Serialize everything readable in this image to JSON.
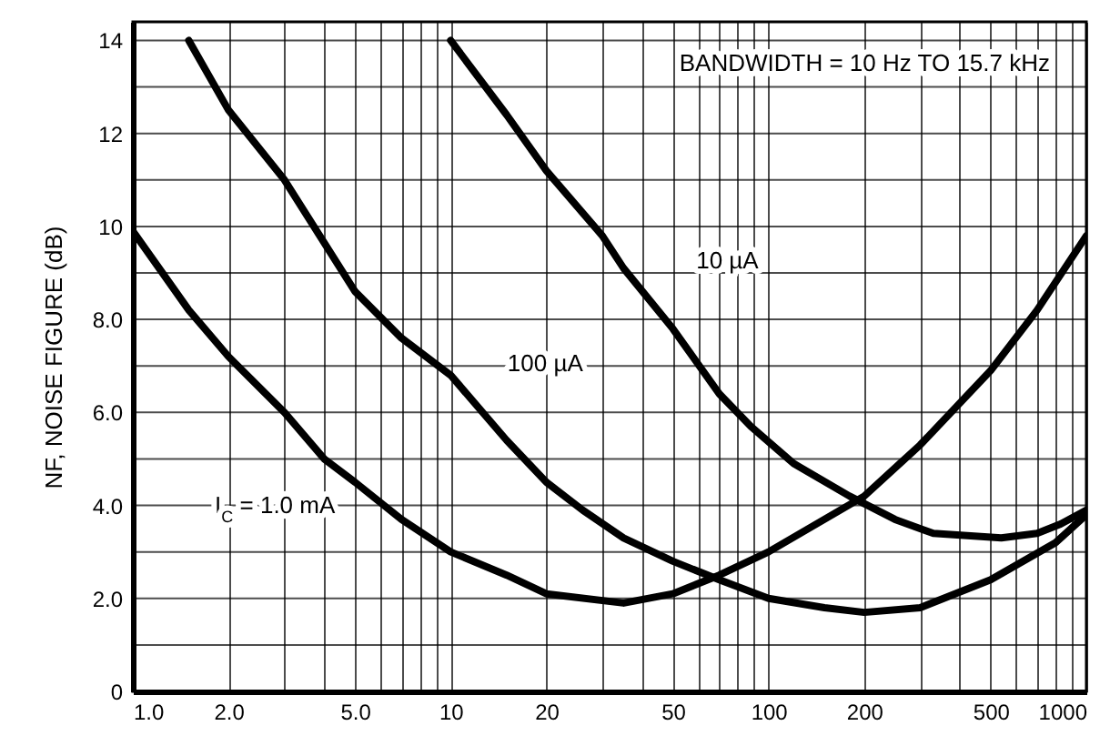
{
  "chart_data": {
    "type": "line",
    "ylabel": "NF, NOISE FIGURE (dB)",
    "log": "x",
    "xlim": [
      1,
      1000
    ],
    "ylim": [
      0,
      14.4
    ],
    "grid": true,
    "marker": "none",
    "line_style": "solid",
    "xticks": [
      {
        "value": 1,
        "label": "1.0"
      },
      {
        "value": 2,
        "label": "2.0"
      },
      {
        "value": 3,
        "label": null
      },
      {
        "value": 4,
        "label": null
      },
      {
        "value": 5,
        "label": "5.0"
      },
      {
        "value": 6,
        "label": null
      },
      {
        "value": 7,
        "label": null
      },
      {
        "value": 8,
        "label": null
      },
      {
        "value": 9,
        "label": null
      },
      10,
      20,
      {
        "value": 30,
        "label": null
      },
      {
        "value": 40,
        "label": null
      },
      50,
      {
        "value": 60,
        "label": null
      },
      {
        "value": 70,
        "label": null
      },
      {
        "value": 80,
        "label": null
      },
      {
        "value": 90,
        "label": null
      },
      100,
      200,
      {
        "value": 300,
        "label": null
      },
      {
        "value": 400,
        "label": null
      },
      500,
      {
        "value": 600,
        "label": null
      },
      {
        "value": 700,
        "label": null
      },
      {
        "value": 800,
        "label": null
      },
      {
        "value": 900,
        "label": null
      },
      1000
    ],
    "yticks": [
      {
        "value": 0,
        "label": "0"
      },
      {
        "value": 1,
        "label": null
      },
      {
        "value": 2,
        "label": "2.0"
      },
      {
        "value": 3,
        "label": null
      },
      {
        "value": 4,
        "label": "4.0"
      },
      {
        "value": 5,
        "label": null
      },
      {
        "value": 6,
        "label": "6.0"
      },
      {
        "value": 7,
        "label": null
      },
      {
        "value": 8,
        "label": "8.0"
      },
      {
        "value": 9,
        "label": null
      },
      {
        "value": 10,
        "label": "10"
      },
      {
        "value": 11,
        "label": null
      },
      {
        "value": 12,
        "label": "12"
      },
      {
        "value": 13,
        "label": null
      },
      {
        "value": 14,
        "label": "14"
      }
    ],
    "series": [
      {
        "name": "I$_{C}$ = 1.0 mA",
        "color": "#000000",
        "x": [
          1,
          1.5,
          2,
          3,
          4,
          5,
          7,
          10,
          15,
          20,
          35,
          50,
          70,
          100,
          200,
          300,
          500,
          700,
          1000
        ],
        "values": [
          9.9,
          8.2,
          7.2,
          6.0,
          5.0,
          4.5,
          3.7,
          3.0,
          2.5,
          2.1,
          1.9,
          2.1,
          2.5,
          3.0,
          4.2,
          5.3,
          6.9,
          8.2,
          9.8
        ]
      },
      {
        "name": "100 µA",
        "color": "#000000",
        "x": [
          1.5,
          2,
          3,
          5,
          7,
          10,
          15,
          20,
          26,
          35,
          50,
          70,
          100,
          150,
          200,
          300,
          500,
          800,
          1000
        ],
        "values": [
          14.0,
          12.5,
          11.0,
          8.6,
          7.6,
          6.8,
          5.4,
          4.5,
          3.9,
          3.3,
          2.8,
          2.4,
          2.0,
          1.8,
          1.7,
          1.8,
          2.4,
          3.2,
          3.8
        ]
      },
      {
        "name": "10 µA",
        "color": "#000000",
        "x": [
          10,
          15,
          20,
          30,
          35,
          50,
          70,
          88,
          120,
          180,
          250,
          330,
          540,
          700,
          830,
          1000
        ],
        "values": [
          14.0,
          12.4,
          11.2,
          9.8,
          9.1,
          7.8,
          6.4,
          5.7,
          4.9,
          4.2,
          3.7,
          3.4,
          3.3,
          3.4,
          3.6,
          3.9
        ]
      }
    ],
    "annotations": [
      "BANDWIDTH = 10 Hz TO 15.7 kHz"
    ]
  }
}
